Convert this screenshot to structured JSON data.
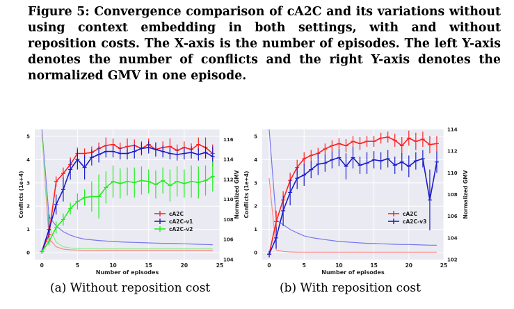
{
  "figure": {
    "caption": "Figure 5: Convergence comparison of cA2C and its variations without using context embedding in both settings, with and without reposition costs. The X-axis is the number of episodes. The left Y-axis denotes the number of conflicts and the right Y-axis denotes the normalized GMV in one episode.",
    "subcaption_a": "(a) Without reposition cost",
    "subcaption_b": "(b) With reposition cost"
  },
  "chart_data": [
    {
      "type": "line",
      "panel": "a",
      "xlabel": "Number of episodes",
      "ylabel_left": "Conflicts (1e+4)",
      "ylabel_right": "Normalized GMV",
      "xlim": [
        -1,
        25
      ],
      "ylim_left": [
        -0.3,
        5.3
      ],
      "ylim_right": [
        104,
        117
      ],
      "xticks": [
        0,
        5,
        10,
        15,
        20,
        25
      ],
      "yticks_left": [
        0,
        1,
        2,
        3,
        4,
        5
      ],
      "yticks_right": [
        104,
        106,
        108,
        110,
        112,
        114,
        116
      ],
      "legend_position": "lower-right",
      "series": [
        {
          "name": "cA2C",
          "color": "#ff2020",
          "axis": "right",
          "x": [
            0,
            1,
            2,
            3,
            4,
            5,
            6,
            7,
            8,
            9,
            10,
            11,
            12,
            13,
            14,
            15,
            16,
            17,
            18,
            19,
            20,
            21,
            22,
            23,
            24
          ],
          "y": [
            104.8,
            106.5,
            111.8,
            112.6,
            113.5,
            114.6,
            114.6,
            114.7,
            115.1,
            115.4,
            115.5,
            115.1,
            115.3,
            115.4,
            115.1,
            115.5,
            115.0,
            115.2,
            115.3,
            114.9,
            115.2,
            115.0,
            115.5,
            115.2,
            114.6
          ],
          "err": [
            0.2,
            0.6,
            0.5,
            0.6,
            0.7,
            0.6,
            0.5,
            0.6,
            0.6,
            0.8,
            0.6,
            0.6,
            0.8,
            0.6,
            0.7,
            0.6,
            0.7,
            0.6,
            0.8,
            0.6,
            0.6,
            0.6,
            0.7,
            1.0,
            0.9
          ]
        },
        {
          "name": "cA2C-v1",
          "color": "#1a1acc",
          "axis": "right",
          "x": [
            0,
            1,
            2,
            3,
            4,
            5,
            6,
            7,
            8,
            9,
            10,
            11,
            12,
            13,
            14,
            15,
            16,
            17,
            18,
            19,
            20,
            21,
            22,
            23,
            24
          ],
          "y": [
            104.8,
            107.0,
            109.5,
            111.0,
            113.0,
            114.0,
            113.2,
            114.2,
            114.5,
            114.8,
            114.8,
            114.6,
            114.6,
            114.8,
            115.1,
            115.2,
            115.0,
            114.8,
            114.6,
            114.5,
            114.6,
            114.7,
            114.5,
            114.7,
            114.3
          ],
          "err": [
            0.2,
            1.5,
            1.0,
            1.2,
            1.0,
            1.0,
            1.2,
            0.8,
            0.8,
            0.6,
            0.6,
            0.6,
            0.6,
            0.7,
            0.6,
            0.6,
            0.7,
            0.6,
            0.6,
            0.6,
            0.6,
            0.6,
            0.6,
            0.6,
            1.0
          ]
        },
        {
          "name": "cA2C-v2",
          "color": "#22ee22",
          "axis": "right",
          "x": [
            0,
            1,
            2,
            3,
            4,
            5,
            6,
            7,
            8,
            9,
            10,
            11,
            12,
            13,
            14,
            15,
            16,
            17,
            18,
            19,
            20,
            21,
            22,
            23,
            24
          ],
          "y": [
            104.8,
            105.8,
            107.2,
            108.0,
            109.1,
            109.8,
            110.2,
            110.3,
            110.3,
            111.2,
            111.8,
            111.6,
            111.8,
            111.7,
            111.9,
            111.8,
            111.5,
            111.9,
            111.4,
            111.8,
            111.6,
            111.8,
            111.7,
            111.9,
            112.3
          ],
          "err": [
            0.2,
            0.4,
            0.6,
            0.6,
            0.6,
            0.8,
            0.8,
            1.5,
            2.2,
            1.6,
            1.6,
            1.5,
            1.4,
            1.5,
            1.4,
            1.2,
            1.4,
            1.3,
            1.6,
            1.5,
            1.4,
            1.6,
            1.6,
            1.5,
            1.5
          ]
        },
        {
          "name": "",
          "color": "#7777ee",
          "axis": "left",
          "x": [
            0,
            1,
            2,
            3,
            4,
            5,
            6,
            7,
            8,
            9,
            10,
            11,
            12,
            13,
            14,
            15,
            16,
            17,
            18,
            19,
            20,
            21,
            22,
            23,
            24
          ],
          "y": [
            5.3,
            1.55,
            1.15,
            0.9,
            0.75,
            0.65,
            0.58,
            0.55,
            0.52,
            0.5,
            0.48,
            0.46,
            0.45,
            0.44,
            0.43,
            0.42,
            0.41,
            0.4,
            0.4,
            0.39,
            0.38,
            0.37,
            0.36,
            0.35,
            0.34
          ]
        },
        {
          "name": "",
          "color": "#ff8888",
          "axis": "left",
          "x": [
            0,
            1,
            2,
            3,
            4,
            5,
            6,
            7,
            8,
            9,
            10,
            11,
            12,
            13,
            14,
            15,
            16,
            17,
            18,
            19,
            20,
            21,
            22,
            23,
            24
          ],
          "y": [
            5.1,
            0.6,
            0.25,
            0.15,
            0.12,
            0.11,
            0.1,
            0.1,
            0.1,
            0.1,
            0.1,
            0.1,
            0.1,
            0.1,
            0.1,
            0.1,
            0.1,
            0.1,
            0.1,
            0.1,
            0.1,
            0.1,
            0.1,
            0.1,
            0.1
          ]
        },
        {
          "name": "",
          "color": "#88ee88",
          "axis": "left",
          "x": [
            0,
            1,
            2,
            3,
            4,
            5,
            6,
            7,
            8,
            9,
            10,
            11,
            12,
            13,
            14,
            15,
            16,
            17,
            18,
            19,
            20,
            21,
            22,
            23,
            24
          ],
          "y": [
            5.0,
            1.1,
            0.45,
            0.25,
            0.2,
            0.18,
            0.17,
            0.17,
            0.16,
            0.16,
            0.16,
            0.16,
            0.16,
            0.16,
            0.16,
            0.16,
            0.16,
            0.16,
            0.16,
            0.16,
            0.16,
            0.16,
            0.16,
            0.16,
            0.16
          ]
        }
      ]
    },
    {
      "type": "line",
      "panel": "b",
      "xlabel": "Number of episodes",
      "ylabel_left": "Conflicts (1e+4)",
      "ylabel_right": "Normalized GMV",
      "xlim": [
        -1,
        25
      ],
      "ylim_left": [
        -0.3,
        5.3
      ],
      "ylim_right": [
        102,
        114
      ],
      "xticks": [
        0,
        5,
        10,
        15,
        20,
        25
      ],
      "yticks_left": [
        0,
        1,
        2,
        3,
        4,
        5
      ],
      "yticks_right": [
        102,
        104,
        106,
        108,
        110,
        112,
        114
      ],
      "legend_position": "lower-right",
      "series": [
        {
          "name": "cA2C",
          "color": "#ff2020",
          "axis": "right",
          "x": [
            0,
            1,
            2,
            3,
            4,
            5,
            6,
            7,
            8,
            9,
            10,
            11,
            12,
            13,
            14,
            15,
            16,
            17,
            18,
            19,
            20,
            21,
            22,
            23,
            24
          ],
          "y": [
            102.5,
            105.5,
            107.5,
            109.3,
            110.5,
            111.3,
            111.6,
            111.8,
            112.2,
            112.5,
            112.7,
            112.5,
            112.9,
            112.7,
            112.9,
            112.9,
            113.2,
            113.3,
            113.0,
            112.5,
            113.2,
            112.9,
            113.1,
            112.6,
            112.7
          ],
          "err": [
            0.3,
            1.0,
            0.8,
            0.7,
            0.7,
            0.6,
            0.5,
            0.5,
            0.5,
            0.5,
            0.5,
            0.6,
            0.5,
            0.6,
            0.5,
            0.5,
            0.5,
            0.5,
            0.6,
            0.8,
            0.7,
            0.8,
            0.7,
            0.8,
            0.7
          ]
        },
        {
          "name": "cA2C-v3",
          "color": "#1a1acc",
          "axis": "right",
          "x": [
            0,
            1,
            2,
            3,
            4,
            5,
            6,
            7,
            8,
            9,
            10,
            11,
            12,
            13,
            14,
            15,
            16,
            17,
            18,
            19,
            20,
            21,
            22,
            23,
            24
          ],
          "y": [
            102.5,
            104.0,
            106.5,
            108.2,
            109.5,
            109.8,
            110.3,
            110.8,
            110.9,
            111.2,
            111.4,
            110.6,
            111.4,
            110.7,
            110.9,
            111.2,
            111.1,
            111.3,
            110.7,
            111.0,
            110.6,
            111.1,
            111.3,
            107.5,
            111.0
          ],
          "err": [
            0.3,
            1.0,
            1.4,
            1.2,
            1.0,
            1.0,
            0.8,
            1.0,
            0.8,
            0.8,
            0.8,
            1.2,
            1.0,
            0.8,
            1.0,
            0.8,
            0.8,
            0.8,
            0.8,
            0.8,
            1.0,
            0.8,
            0.8,
            2.8,
            1.0
          ]
        },
        {
          "name": "",
          "color": "#7777ee",
          "axis": "left",
          "x": [
            0,
            1,
            2,
            3,
            4,
            5,
            6,
            7,
            8,
            9,
            10,
            11,
            12,
            13,
            14,
            15,
            16,
            17,
            18,
            19,
            20,
            21,
            22,
            23,
            24
          ],
          "y": [
            5.3,
            1.4,
            1.2,
            1.0,
            0.85,
            0.72,
            0.65,
            0.6,
            0.56,
            0.52,
            0.48,
            0.46,
            0.44,
            0.42,
            0.4,
            0.4,
            0.38,
            0.37,
            0.36,
            0.35,
            0.35,
            0.34,
            0.33,
            0.32,
            0.32
          ]
        },
        {
          "name": "",
          "color": "#ff8888",
          "axis": "left",
          "x": [
            0,
            1,
            2,
            3,
            4,
            5,
            6,
            7,
            8,
            9,
            10,
            11,
            12,
            13,
            14,
            15,
            16,
            17,
            18,
            19,
            20,
            21,
            22,
            23,
            24
          ],
          "y": [
            3.2,
            0.12,
            0.05,
            0.03,
            0.02,
            0.02,
            0.02,
            0.02,
            0.02,
            0.02,
            0.02,
            0.02,
            0.02,
            0.02,
            0.02,
            0.02,
            0.02,
            0.02,
            0.02,
            0.02,
            0.02,
            0.02,
            0.02,
            0.02,
            0.02
          ]
        }
      ]
    }
  ]
}
